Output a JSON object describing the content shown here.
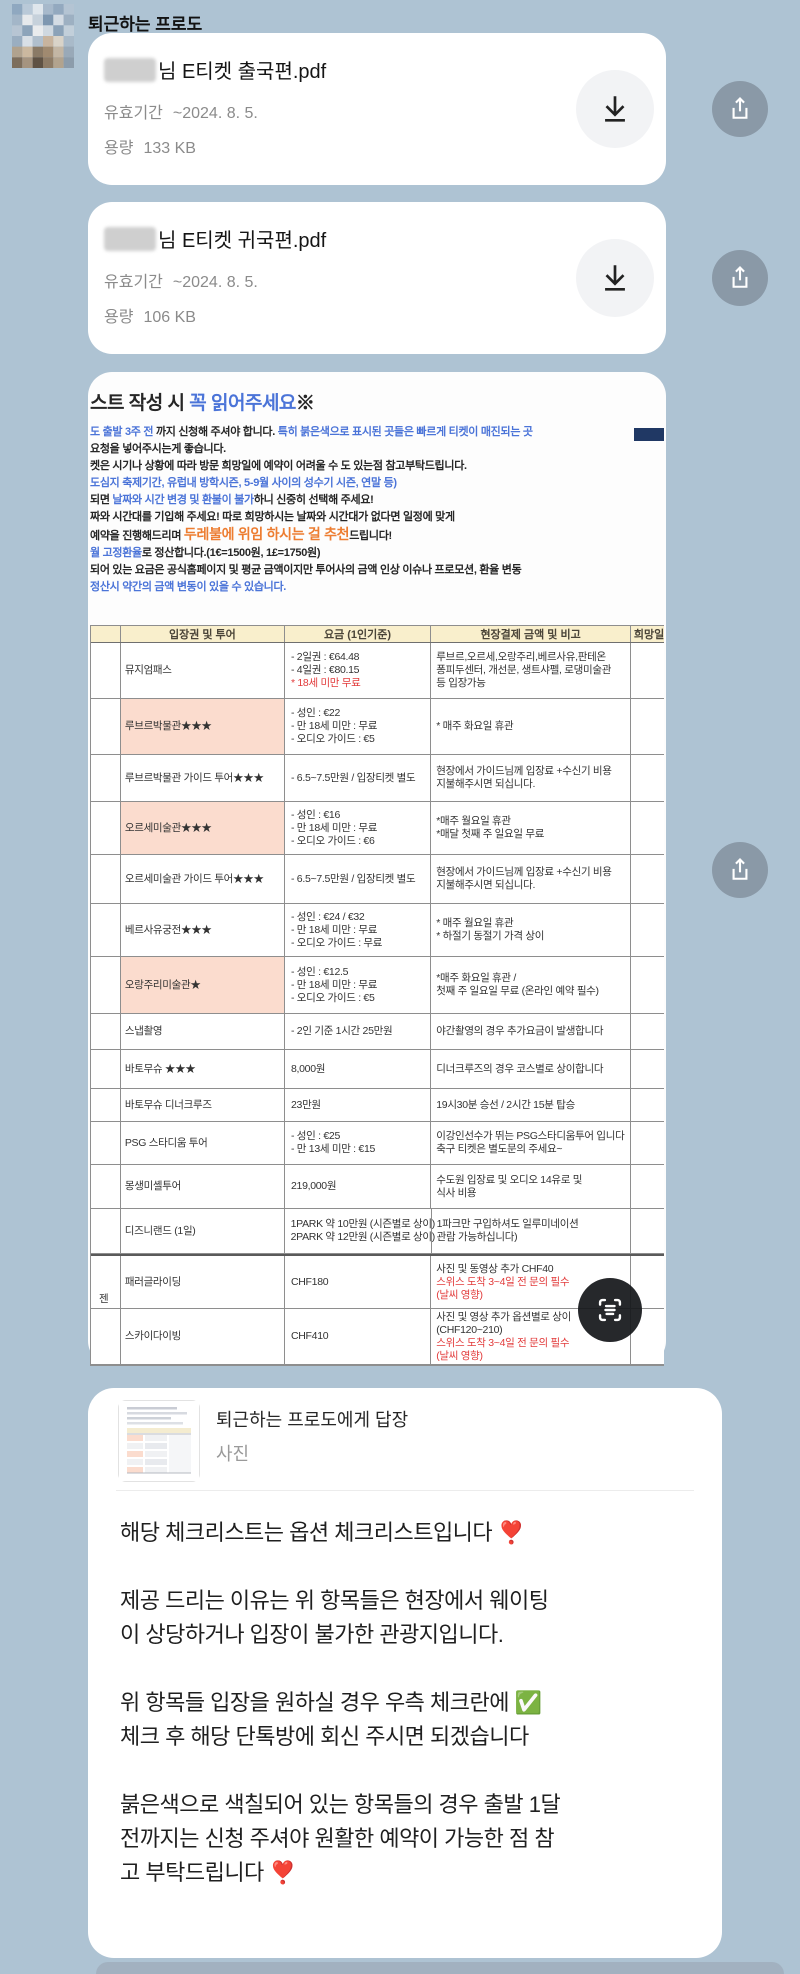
{
  "colors": {
    "background": "#aec3d3",
    "doc_blue": "#4b74d8",
    "doc_orange": "#ed7d31",
    "doc_red": "#e23b3b",
    "table_header_bg": "#f9efcc",
    "pink_cell": "#fbdcce",
    "share_button": "#8a99a7"
  },
  "icons": {
    "avatar": "profile-photo",
    "download": "download-icon",
    "share": "share-icon",
    "scan": "scan-text-icon"
  },
  "sender": {
    "name": "퇴근하는 프로도"
  },
  "files": [
    {
      "title_suffix": "님 E티켓 출국편.pdf",
      "validity_label": "유효기간",
      "validity": "~2024. 8. 5.",
      "size_label": "용량",
      "size": "133 KB"
    },
    {
      "title_suffix": "님 E티켓 귀국편.pdf",
      "validity_label": "유효기간",
      "validity": "~2024. 8. 5.",
      "size_label": "용량",
      "size": "106 KB"
    }
  ],
  "document": {
    "title": [
      {
        "t": "스트 작성 시 ",
        "c": "k"
      },
      {
        "t": "꼭 읽어주세요",
        "c": "b"
      },
      {
        "t": "※",
        "c": "k"
      }
    ],
    "intro": [
      [
        {
          "t": "도 출발 3주 전",
          "c": "b"
        },
        {
          "t": " 까지 신청해 주셔야 합니다. ",
          "c": "k"
        },
        {
          "t": "특히 붉은색으로 표시된 곳들은 빠르게 티켓이 매진되는 곳",
          "c": "b"
        }
      ],
      [
        {
          "t": "요청을 넣어주시는게 좋습니다.",
          "c": "k"
        }
      ],
      [
        {
          "t": "켓은 시기나 상황에 따라 방문 희망일에 예약이 어려울 수 도 있는점 참고부탁드립니다.",
          "c": "k"
        }
      ],
      [
        {
          "t": "도심지 축제기간, 유럽내 방학시즌, 5-9월 사이의 성수기 시즌, 연말 등)",
          "c": "b"
        }
      ],
      [
        {
          "t": "되면 ",
          "c": "k"
        },
        {
          "t": "날짜와 시간 변경 및 환불이 불가",
          "c": "b"
        },
        {
          "t": "하니 신중히 선택해 주세요!",
          "c": "k"
        }
      ],
      [
        {
          "t": "짜와 시간대를 기입해 주세요! 따로 희망하시는 날짜와 시간대가 없다면 일정에 맞게",
          "c": "k"
        }
      ],
      [
        {
          "t": "예약을 진행해드리며 ",
          "c": "k"
        },
        {
          "t": "두레불에 위임 하시는 걸 추천",
          "c": "o"
        },
        {
          "t": "드립니다!",
          "c": "k"
        }
      ],
      [
        {
          "t": "월 고정환율",
          "c": "b"
        },
        {
          "t": "로 정산합니다.(1€=1500원, 1£=1750원)",
          "c": "k"
        }
      ],
      [
        {
          "t": "되어 있는 요금은 공식홈페이지 및 평균 금액이지만 투어사의 금액 인상 이슈나 프로모션, 환율 변동",
          "c": "k"
        }
      ],
      [
        {
          "t": "정산시 약간의 금액 변동이 있을 수 있습니다.",
          "c": "b"
        }
      ]
    ],
    "table": {
      "headers": [
        "",
        "입장권 및 투어",
        "요금 (1인기준)",
        "현장결제 금액 및 비고",
        "희망일"
      ],
      "rows": [
        {
          "h": 56,
          "name": "뮤지엄패스",
          "pink": false,
          "fare": [
            {
              "t": "- 2일권 : €64.48"
            },
            {
              "t": "- 4일권 : €80.15"
            },
            {
              "t": "* 18세 미만 무료",
              "c": "r"
            }
          ],
          "note": [
            {
              "t": "루브르,오르세,오랑주리,베르사유,판테온"
            },
            {
              "t": "퐁피두센터, 개선문, 생트샤펠, 로댕미술관"
            },
            {
              "t": "등 입장가능"
            }
          ]
        },
        {
          "h": 56,
          "name": "루브르박물관★★★",
          "pink": true,
          "fare": [
            {
              "t": "- 성인 : €22"
            },
            {
              "t": "- 만 18세 미만 : 무료"
            },
            {
              "t": "- 오디오 가이드 : €5"
            }
          ],
          "note": [
            {
              "t": "* 매주 화요일 휴관"
            }
          ]
        },
        {
          "h": 47,
          "name": "루브르박물관 가이드 투어★★★",
          "pink": false,
          "fare": [
            {
              "t": "- 6.5~7.5만원 / 입장티켓 별도"
            }
          ],
          "note": [
            {
              "t": "현장에서 가이드님께 입장료 +수신기 비용"
            },
            {
              "t": "지불해주시면 되십니다."
            }
          ]
        },
        {
          "h": 53,
          "name": "오르세미술관★★★",
          "pink": true,
          "fare": [
            {
              "t": "- 성인 : €16"
            },
            {
              "t": "- 만 18세 미만 : 무료"
            },
            {
              "t": "- 오디오 가이드 : €6"
            }
          ],
          "note": [
            {
              "t": "*매주 월요일 휴관"
            },
            {
              "t": "*매달 첫째 주 일요일 무료"
            }
          ]
        },
        {
          "h": 49,
          "name": "오르세미술관 가이드 투어★★★",
          "pink": false,
          "fare": [
            {
              "t": "- 6.5~7.5만원 / 입장티켓 별도"
            }
          ],
          "note": [
            {
              "t": "현장에서 가이드님께 입장료 +수신기 비용"
            },
            {
              "t": "지불해주시면 되십니다."
            }
          ]
        },
        {
          "h": 53,
          "name": "베르사유궁전★★★",
          "pink": false,
          "fare": [
            {
              "t": "- 성인 : €24 / €32"
            },
            {
              "t": "- 만 18세 미만 : 무료"
            },
            {
              "t": "- 오디오 가이드 : 무료"
            }
          ],
          "note": [
            {
              "t": "* 매주 월요일 휴관"
            },
            {
              "t": "* 하절기 동절기 가격 상이"
            }
          ]
        },
        {
          "h": 57,
          "name": "오랑주리미술관★",
          "pink": true,
          "fare": [
            {
              "t": "- 성인 : €12.5"
            },
            {
              "t": "- 만 18세 미만 : 무료"
            },
            {
              "t": "- 오디오 가이드 : €5"
            }
          ],
          "note": [
            {
              "t": "*매주 화요일 휴관 /"
            },
            {
              "t": "첫째 주 일요일 무료 (온라인 예약 필수)"
            }
          ]
        },
        {
          "h": 36,
          "name": "스냅촬영",
          "pink": false,
          "fare": [
            {
              "t": "- 2인 기준 1시간 25만원"
            }
          ],
          "note": [
            {
              "t": "야간촬영의 경우 추가요금이 발생합니다"
            }
          ]
        },
        {
          "h": 39,
          "name": "바토무슈 ★★★",
          "pink": false,
          "fare": [
            {
              "t": "8,000원"
            }
          ],
          "note": [
            {
              "t": "디너크루즈의 경우 코스별로 상이합니다"
            }
          ]
        },
        {
          "h": 33,
          "name": "바토무슈 디너크루즈",
          "pink": false,
          "fare": [
            {
              "t": "23만원"
            }
          ],
          "note": [
            {
              "t": "19시30분 승선 / 2시간 15분 탑승"
            }
          ]
        },
        {
          "h": 43,
          "name": "PSG 스타디움 투어",
          "pink": false,
          "fare": [
            {
              "t": "- 성인 : €25"
            },
            {
              "t": "- 만 13세 미만 : €15"
            }
          ],
          "note": [
            {
              "t": "이강인선수가 뛰는 PSG스타디움투어 입니다"
            },
            {
              "t": "축구 티켓은 별도문의 주세요~"
            }
          ]
        },
        {
          "h": 44,
          "name": "몽생미셸투어",
          "pink": false,
          "fare": [
            {
              "t": "219,000원"
            }
          ],
          "note": [
            {
              "t": "수도원 입장료 및 오디오 14유로 및"
            },
            {
              "t": "식사 비용"
            }
          ]
        },
        {
          "h": 45,
          "name": "디즈니랜드 (1일)",
          "pink": false,
          "fare": [
            {
              "t": "1PARK 약 10만원 (시즌별로 상이)"
            },
            {
              "t": "2PARK 약 12만원 (시즌별로 상이)"
            }
          ],
          "note": [
            {
              "t": "1파크만 구입하셔도 일루미네이션"
            },
            {
              "t": "관람 가능하십니다)"
            }
          ]
        },
        {
          "h": 55,
          "thick": true,
          "side": "젠",
          "name": "패러글라이딩",
          "pink": false,
          "fare": [
            {
              "t": "CHF180"
            }
          ],
          "note": [
            {
              "t": "사진 및 동영상 추가 CHF40"
            },
            {
              "t": "스위스 도착 3~4일 전 문의 필수",
              "c": "r"
            },
            {
              "t": "(날씨 영향)",
              "c": "r"
            }
          ]
        },
        {
          "h": 56,
          "name": "스카이다이빙",
          "pink": false,
          "fare": [
            {
              "t": "CHF410"
            }
          ],
          "note": [
            {
              "t": "사진 및 영상 추가 옵션별로 상이"
            },
            {
              "t": "(CHF120~210)"
            },
            {
              "t": "스위스 도착 3~4일 전 문의 필수",
              "c": "r"
            },
            {
              "t": "(날씨 영향)",
              "c": "r"
            }
          ]
        }
      ]
    }
  },
  "reply": {
    "quote_title": "퇴근하는 프로도에게 답장",
    "quote_subtitle": "사진",
    "paragraphs": [
      [
        "해당 체크리스트는 옵션 체크리스트입니다 ❣️"
      ],
      [
        "제공 드리는 이유는 위 항목들은 현장에서 웨이팅",
        "이 상당하거나 입장이 불가한 관광지입니다."
      ],
      [
        "위 항목들 입장을 원하실 경우 우측 체크란에 ✅",
        "체크 후 해당 단톡방에 회신 주시면 되겠습니다"
      ],
      [
        "붉은색으로 색칠되어 있는 항목들의 경우 출발 1달",
        "전까지는 신청 주셔야 원활한 예약이 가능한 점 참",
        "고 부탁드립니다 ❣️"
      ]
    ]
  }
}
